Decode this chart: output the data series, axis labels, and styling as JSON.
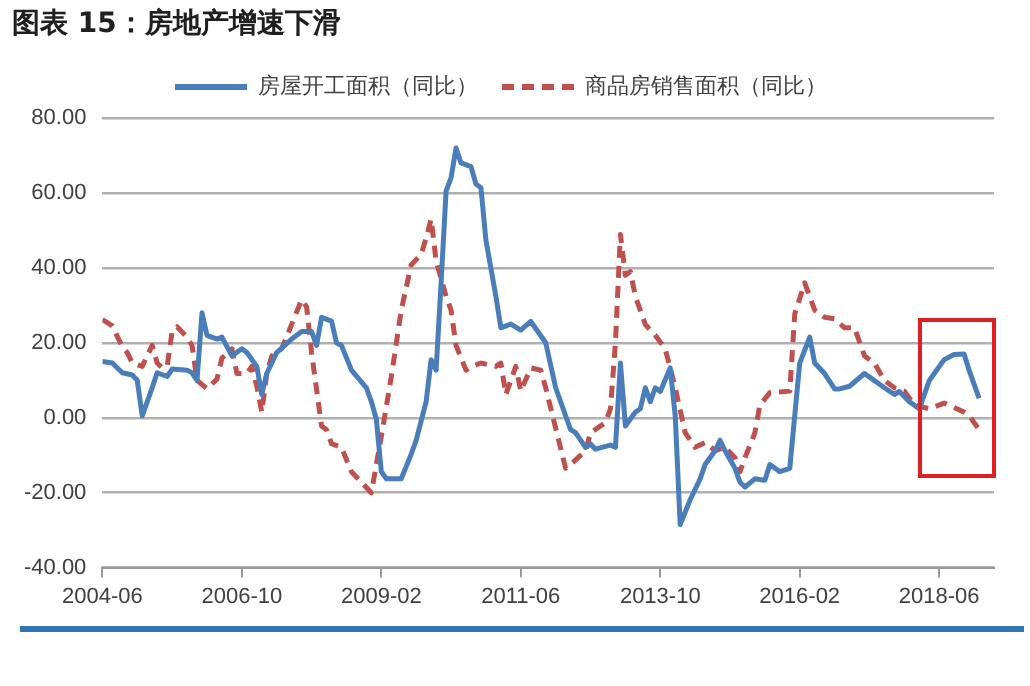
{
  "chart_data": {
    "type": "line",
    "title": "图表 15：房地产增速下滑",
    "xlim": [
      "2004-06",
      "2019-05"
    ],
    "xticks": [
      "2004-06",
      "2006-10",
      "2009-02",
      "2011-06",
      "2013-10",
      "2016-02",
      "2018-06"
    ],
    "ylim": [
      -40,
      80
    ],
    "yticks": [
      {
        "value": -40,
        "label": "-40.00"
      },
      {
        "value": -20,
        "label": "-20.00"
      },
      {
        "value": 0,
        "label": "0.00"
      },
      {
        "value": 20,
        "label": "20.00"
      },
      {
        "value": 40,
        "label": "40.00"
      },
      {
        "value": 60,
        "label": "60.00"
      },
      {
        "value": 80,
        "label": "80.00"
      }
    ],
    "grid": "y",
    "legend": "top",
    "marker": "none",
    "series": [
      {
        "name": "房屋开工面积（同比）",
        "color": "#4a7ebb",
        "line_style": "solid",
        "x": [
          "2004-06",
          "2004-08",
          "2004-10",
          "2004-12",
          "2005-01",
          "2005-02",
          "2005-04",
          "2005-05",
          "2005-07",
          "2005-08",
          "2005-11",
          "2005-12",
          "2006-01",
          "2006-02",
          "2006-03",
          "2006-05",
          "2006-06",
          "2006-08",
          "2006-10",
          "2006-11",
          "2007-01",
          "2007-02",
          "2007-03",
          "2007-05",
          "2007-08",
          "2007-10",
          "2007-12",
          "2008-01",
          "2008-02",
          "2008-04",
          "2008-05",
          "2008-06",
          "2008-08",
          "2008-11",
          "2008-12",
          "2009-01",
          "2009-02",
          "2009-03",
          "2009-06",
          "2009-08",
          "2009-09",
          "2009-11",
          "2009-12",
          "2010-01",
          "2010-02",
          "2010-03",
          "2010-04",
          "2010-05",
          "2010-06",
          "2010-08",
          "2010-09",
          "2010-10",
          "2010-11",
          "2011-01",
          "2011-02",
          "2011-04",
          "2011-06",
          "2011-08",
          "2011-11",
          "2012-01",
          "2012-04",
          "2012-05",
          "2012-07",
          "2012-08",
          "2012-09",
          "2012-12",
          "2013-01",
          "2013-02",
          "2013-03",
          "2013-05",
          "2013-06",
          "2013-07",
          "2013-08",
          "2013-09",
          "2013-10",
          "2013-12",
          "2014-01",
          "2014-02",
          "2014-04",
          "2014-06",
          "2014-07",
          "2014-09",
          "2014-10",
          "2014-11",
          "2015-01",
          "2015-02",
          "2015-03",
          "2015-05",
          "2015-07",
          "2015-08",
          "2015-10",
          "2015-12",
          "2016-01",
          "2016-02",
          "2016-04",
          "2016-05",
          "2016-07",
          "2016-09",
          "2016-10",
          "2016-12",
          "2017-03",
          "2017-05",
          "2017-07",
          "2017-09",
          "2017-10",
          "2017-12",
          "2018-02",
          "2018-04",
          "2018-05",
          "2018-07",
          "2018-09",
          "2018-11",
          "2018-12",
          "2019-02"
        ],
        "values": [
          15,
          14.6,
          12,
          11.4,
          10,
          0.5,
          8,
          12,
          11,
          13,
          12.7,
          12,
          10,
          28,
          22,
          21,
          21.5,
          16.5,
          18.4,
          17.4,
          13.7,
          6.2,
          11.8,
          17.4,
          21,
          23,
          23,
          19.3,
          26.8,
          25.8,
          20,
          19.3,
          12.7,
          8,
          4.3,
          -0.4,
          -14.4,
          -16.3,
          -16.3,
          -9.7,
          -6,
          4.3,
          15.5,
          12.7,
          36,
          60.5,
          64,
          72,
          68,
          67,
          62.4,
          61.4,
          47.4,
          32.4,
          24,
          25,
          23.4,
          25.7,
          20,
          8,
          -3.2,
          -4,
          -7.9,
          -7,
          -8.4,
          -7.3,
          -7.9,
          14.6,
          -2.2,
          1.5,
          2.4,
          8,
          4.3,
          8,
          7,
          13.3,
          0.6,
          -28.5,
          -21.9,
          -16.3,
          -12.5,
          -8.8,
          -6,
          -8.8,
          -13.5,
          -17.2,
          -18.5,
          -16.3,
          -16.7,
          -12.5,
          -14.4,
          -13.5,
          0.6,
          14.6,
          21.5,
          14.6,
          11.8,
          7.7,
          7.7,
          8.4,
          11.8,
          9.9,
          8,
          6.2,
          7,
          4.3,
          2.4,
          9.9,
          11.8,
          15.5,
          16.9,
          17,
          12.7,
          5.2
        ]
      },
      {
        "name": "商品房销售面积（同比）",
        "color": "#c0504d",
        "line_style": "dashed",
        "x": [
          "2004-06",
          "2004-08",
          "2004-10",
          "2004-11",
          "2004-12",
          "2005-02",
          "2005-04",
          "2005-05",
          "2005-06",
          "2005-07",
          "2005-08",
          "2005-09",
          "2005-11",
          "2005-12",
          "2006-01",
          "2006-03",
          "2006-05",
          "2006-06",
          "2006-08",
          "2006-09",
          "2006-11",
          "2006-12",
          "2007-01",
          "2007-02",
          "2007-03",
          "2007-04",
          "2007-06",
          "2007-08",
          "2007-10",
          "2007-11",
          "2007-12",
          "2008-02",
          "2008-03",
          "2008-04",
          "2008-06",
          "2008-08",
          "2008-10",
          "2008-12",
          "2009-02",
          "2009-04",
          "2009-06",
          "2009-08",
          "2009-10",
          "2009-11",
          "2009-12",
          "2010-01",
          "2010-03",
          "2010-04",
          "2010-05",
          "2010-07",
          "2010-08",
          "2010-10",
          "2011-01",
          "2011-02",
          "2011-03",
          "2011-05",
          "2011-06",
          "2011-08",
          "2011-10",
          "2011-11",
          "2012-03",
          "2012-04",
          "2012-07",
          "2012-08",
          "2012-11",
          "2012-12",
          "2013-01",
          "2013-02",
          "2013-03",
          "2013-04",
          "2013-05",
          "2013-07",
          "2013-09",
          "2013-11",
          "2014-01",
          "2014-03",
          "2014-05",
          "2014-07",
          "2014-09",
          "2014-11",
          "2015-01",
          "2015-02",
          "2015-03",
          "2015-05",
          "2015-06",
          "2015-08",
          "2015-12",
          "2016-01",
          "2016-03",
          "2016-05",
          "2016-07",
          "2016-09",
          "2016-11",
          "2017-01",
          "2017-03",
          "2017-05",
          "2017-07",
          "2017-09",
          "2017-11",
          "2018-01",
          "2018-04",
          "2018-07",
          "2018-11",
          "2018-12",
          "2019-02"
        ],
        "values": [
          26.2,
          24.5,
          18.9,
          17.4,
          14.6,
          13.7,
          19.3,
          14.6,
          13.3,
          13.7,
          23,
          24.3,
          21.5,
          19.3,
          10,
          7.7,
          10.3,
          15.9,
          18.4,
          11.8,
          11.8,
          13.7,
          8.4,
          1.5,
          11.8,
          16.5,
          18.4,
          24.9,
          31.5,
          29.6,
          17.4,
          -2.2,
          -3.2,
          -6.9,
          -7.9,
          -14.4,
          -17.2,
          -20,
          -5,
          10.9,
          28.7,
          40.8,
          43.6,
          48,
          53,
          41.8,
          32.4,
          28.7,
          19.3,
          12.7,
          13.7,
          14.6,
          13.7,
          14.6,
          6.2,
          13.7,
          7.1,
          13.3,
          12.7,
          8,
          -13.5,
          -12.5,
          -8.8,
          -4,
          -1.3,
          2.4,
          20,
          48.9,
          38,
          39,
          32.4,
          24.9,
          22,
          18.4,
          8,
          -4,
          -7.9,
          -6.6,
          -8.8,
          -7.9,
          -10.7,
          -14.4,
          -10.7,
          -4,
          3.4,
          6.7,
          7.1,
          27.7,
          36,
          28.7,
          26.8,
          26.4,
          24,
          24,
          16.5,
          14.6,
          9.9,
          8,
          7.1,
          3.4,
          2.4,
          3.9,
          1.5,
          0.6,
          -3.2
        ]
      }
    ]
  }
}
